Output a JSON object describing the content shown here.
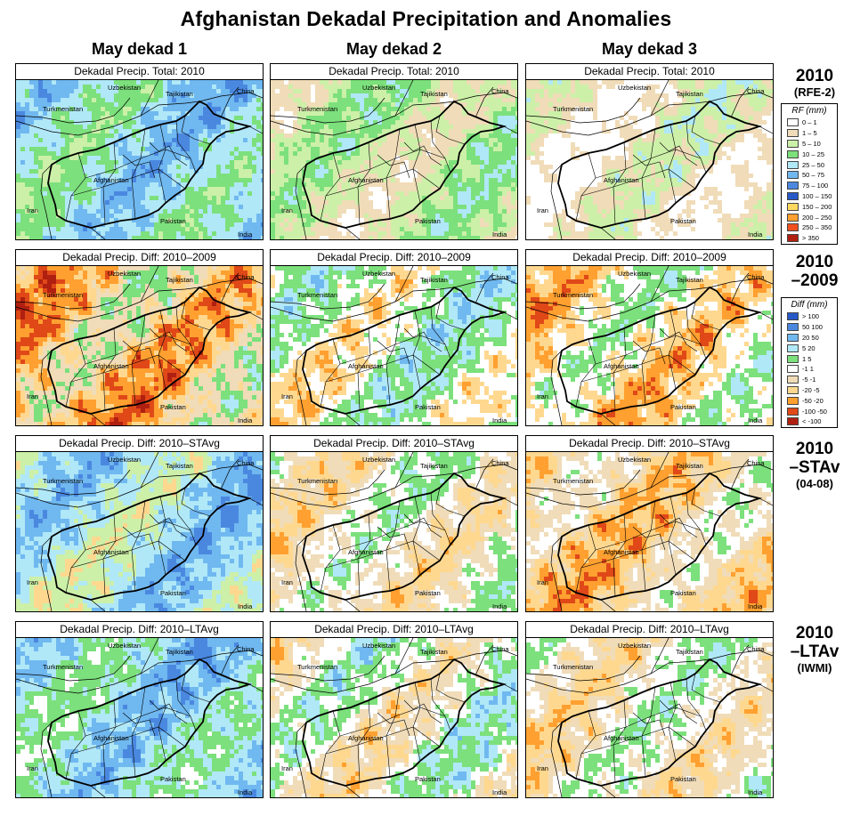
{
  "title": "Afghanistan Dekadal Precipitation and Anomalies",
  "columns": [
    "May dekad 1",
    "May dekad 2",
    "May dekad 3"
  ],
  "rows": [
    {
      "heading": "2010",
      "subheading": "(RFE-2)",
      "panel_title": "Dekadal Precip. Total: 2010",
      "kind": "total"
    },
    {
      "heading": "2010",
      "subheading": "–2009",
      "panel_title": "Dekadal Precip. Diff:  2010–2009",
      "kind": "diff"
    },
    {
      "heading": "2010",
      "subheading": "–STAv",
      "note": "(04-08)",
      "panel_title": "Dekadal Precip. Diff:  2010–STAvg",
      "kind": "diff"
    },
    {
      "heading": "2010",
      "subheading": "–LTAv",
      "note": "(IWMI)",
      "panel_title": "Dekadal Precip. Diff:  2010–LTAvg",
      "kind": "diff"
    }
  ],
  "map_labels": {
    "uzbekistan": "Uzbekistan",
    "tajikistan": "Tajikistan",
    "china": "China",
    "turkmenistan": "Turkmenistan",
    "afghanistan": "Afghanistan",
    "iran": "Iran",
    "pakistan": "Pakistan",
    "india": "India"
  },
  "legend_rf": {
    "title": "RF (mm)",
    "items": [
      {
        "label": "0 – 1",
        "color": "#ffffff"
      },
      {
        "label": "1 – 5",
        "color": "#f0dcb8"
      },
      {
        "label": "5 – 10",
        "color": "#ccf0a8"
      },
      {
        "label": "10 – 25",
        "color": "#7ce07c"
      },
      {
        "label": "25 – 50",
        "color": "#b0e8f8"
      },
      {
        "label": "50 – 75",
        "color": "#70b8f0"
      },
      {
        "label": "75 – 100",
        "color": "#4a88e0"
      },
      {
        "label": "100 – 150",
        "color": "#2858c8"
      },
      {
        "label": "150 – 200",
        "color": "#ffd860"
      },
      {
        "label": "200 – 250",
        "color": "#ffa030"
      },
      {
        "label": "250 – 350",
        "color": "#f05020"
      },
      {
        "label": "> 350",
        "color": "#b02010"
      }
    ]
  },
  "legend_diff": {
    "title": "Diff (mm)",
    "items": [
      {
        "label": "> 100",
        "color": "#2858c8"
      },
      {
        "label": "50  100",
        "color": "#4a88e0"
      },
      {
        "label": "20  50",
        "color": "#70b8f0"
      },
      {
        "label": "5  20",
        "color": "#b0e8f8"
      },
      {
        "label": "1  5",
        "color": "#7ce07c"
      },
      {
        "label": "-1  1",
        "color": "#ffffff"
      },
      {
        "label": "-5  -1",
        "color": "#f0dcb8"
      },
      {
        "label": "-20  -5",
        "color": "#ffd890"
      },
      {
        "label": "-50  -20",
        "color": "#ffa030"
      },
      {
        "label": "-100  -50",
        "color": "#e04818"
      },
      {
        "label": "< -100",
        "color": "#b02010"
      }
    ]
  },
  "colors": {
    "white": "#ffffff",
    "tan": "#f0dcb8",
    "lightgreen": "#ccf0a8",
    "green": "#7ce07c",
    "cyan": "#b0e8f8",
    "lightblue": "#70b8f0",
    "blue": "#4a88e0",
    "yellow": "#ffd890",
    "orange": "#ffa030",
    "red": "#e04818",
    "darkred": "#b02010"
  }
}
